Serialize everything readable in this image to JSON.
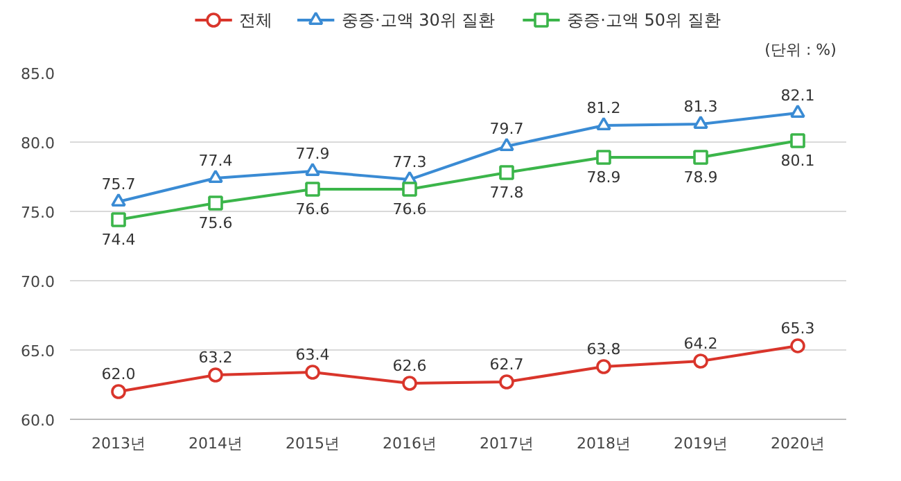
{
  "chart_data": {
    "type": "line",
    "categories": [
      "2013년",
      "2014년",
      "2015년",
      "2016년",
      "2017년",
      "2018년",
      "2019년",
      "2020년"
    ],
    "series": [
      {
        "name": "전체",
        "color": "#d9352b",
        "marker": "circle",
        "values": [
          62.0,
          63.2,
          63.4,
          62.6,
          62.7,
          63.8,
          64.2,
          65.3
        ],
        "value_labels": [
          "62.0",
          "63.2",
          "63.4",
          "62.6",
          "62.7",
          "63.8",
          "64.2",
          "65.3"
        ]
      },
      {
        "name": "중증·고액 30위 질환",
        "color": "#3a8bd4",
        "marker": "triangle",
        "values": [
          75.7,
          77.4,
          77.9,
          77.3,
          79.7,
          81.2,
          81.3,
          82.1
        ],
        "value_labels": [
          "75.7",
          "77.4",
          "77.9",
          "77.3",
          "79.7",
          "81.2",
          "81.3",
          "82.1"
        ]
      },
      {
        "name": "중증·고액 50위 질환",
        "color": "#3bb54a",
        "marker": "square",
        "values": [
          74.4,
          75.6,
          76.6,
          76.6,
          77.8,
          78.9,
          78.9,
          80.1
        ],
        "value_labels": [
          "74.4",
          "75.6",
          "76.6",
          "76.6",
          "77.8",
          "78.9",
          "78.9",
          "80.1"
        ]
      }
    ],
    "ylim": [
      60,
      85
    ],
    "yticks": [
      {
        "value": 60,
        "label": "60.0"
      },
      {
        "value": 65,
        "label": "65.0"
      },
      {
        "value": 70,
        "label": "70.0"
      },
      {
        "value": 75,
        "label": "75.0"
      },
      {
        "value": 80,
        "label": "80.0"
      },
      {
        "value": 85,
        "label": "85.0"
      }
    ],
    "grid": "y",
    "legend": "top",
    "line_style": "solid",
    "annotations": [
      "(단위 : %)"
    ]
  }
}
